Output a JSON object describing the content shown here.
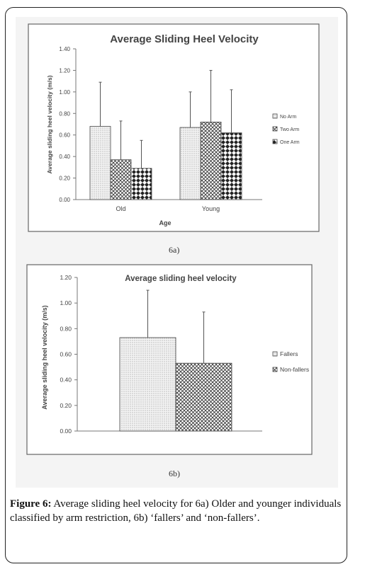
{
  "chart_data": [
    {
      "type": "bar",
      "title": "Average Sliding Heel Velocity",
      "xlabel": "Age",
      "ylabel": "Average sliding heel velocity (m/s)",
      "ylim": [
        0,
        1.4
      ],
      "yticks": [
        "0.00",
        "0.20",
        "0.40",
        "0.60",
        "0.80",
        "1.00",
        "1.20",
        "1.40"
      ],
      "categories": [
        "Old",
        "Young"
      ],
      "series": [
        {
          "name": "No Arm",
          "values": [
            0.68,
            0.67
          ],
          "errors": [
            0.41,
            0.33
          ],
          "pattern": "dots"
        },
        {
          "name": "Two Arm",
          "values": [
            0.37,
            0.72
          ],
          "errors": [
            0.36,
            0.48
          ],
          "pattern": "cross"
        },
        {
          "name": "One Arm",
          "values": [
            0.29,
            0.62
          ],
          "errors": [
            0.26,
            0.4
          ],
          "pattern": "diamond"
        }
      ],
      "legend_position": "right",
      "grid": false
    },
    {
      "type": "bar",
      "title": "Average sliding heel velocity",
      "ylabel": "Average sliding heel velocity (m/s)",
      "ylim": [
        0,
        1.2
      ],
      "yticks": [
        "0.00",
        "0.20",
        "0.40",
        "0.60",
        "0.80",
        "1.00",
        "1.20"
      ],
      "categories": [
        ""
      ],
      "series": [
        {
          "name": "Fallers",
          "values": [
            0.73
          ],
          "errors": [
            0.37
          ],
          "pattern": "dots"
        },
        {
          "name": "Non-fallers",
          "values": [
            0.53
          ],
          "errors": [
            0.4
          ],
          "pattern": "cross"
        }
      ],
      "legend_position": "right",
      "grid": false
    }
  ],
  "labels": {
    "fig_a": "6a)",
    "fig_b": "6b)"
  },
  "caption": {
    "prefix": "Figure 6:",
    "text": " Average sliding heel velocity for 6a) Older and younger individuals classified by arm restriction, 6b) ‘fallers’ and ‘non-fallers’."
  }
}
